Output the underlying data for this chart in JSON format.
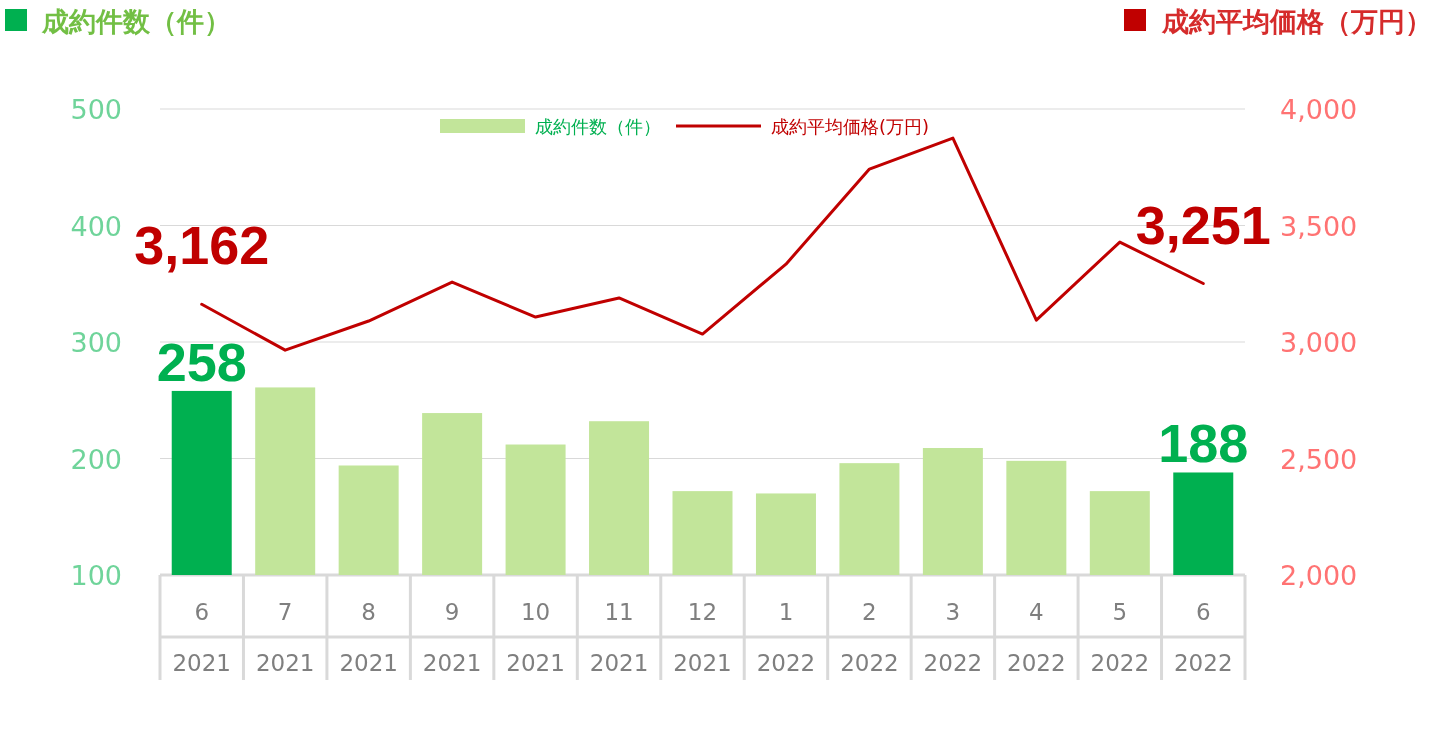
{
  "chart_data": {
    "type": "bar",
    "categories": [
      "6\n2021",
      "7\n2021",
      "8\n2021",
      "9\n2021",
      "10\n2021",
      "11\n2021",
      "12\n2021",
      "1\n2022",
      "2\n2022",
      "3\n2022",
      "4\n2022",
      "5\n2022",
      "6\n2022"
    ],
    "ylabel": "成約件数（件）",
    "y2label": "成約平均価格（万円）",
    "series": [
      {
        "name": "成約件数（件）",
        "color": "#00b050",
        "colors": [
          "#00b050",
          "#c2e59a",
          "#c2e59a",
          "#c2e59a",
          "#c2e59a",
          "#c2e59a",
          "#c2e59a",
          "#c2e59a",
          "#c2e59a",
          "#c2e59a",
          "#c2e59a",
          "#c2e59a",
          "#00b050"
        ],
        "values": [
          258,
          261,
          194,
          239,
          212,
          232,
          172,
          170,
          196,
          209,
          198,
          172,
          188
        ],
        "value_labels": [
          "258",
          null,
          null,
          null,
          null,
          null,
          null,
          null,
          null,
          null,
          null,
          null,
          "188"
        ]
      },
      {
        "name": "成約平均価格(万円)",
        "type": "line",
        "axis": "y2",
        "color": "#c00000",
        "values": [
          3162,
          2965,
          3090,
          3257,
          3107,
          3189,
          3034,
          3334,
          3742,
          3875,
          3094,
          3429,
          3251
        ],
        "value_labels": [
          "3,162",
          null,
          null,
          null,
          null,
          null,
          null,
          null,
          null,
          null,
          null,
          null,
          "3,251"
        ]
      }
    ],
    "ylim": [
      100,
      500
    ],
    "yticks": [
      100,
      200,
      300,
      400,
      500
    ],
    "y2lim": [
      2000,
      4000
    ],
    "y2ticks": [
      {
        "value": 2000,
        "label": "2,000"
      },
      {
        "value": 2500,
        "label": "2,500"
      },
      {
        "value": 3000,
        "label": "3,000"
      },
      {
        "value": 3500,
        "label": "3,500"
      },
      {
        "value": 4000,
        "label": "4,000"
      }
    ],
    "grid": "y",
    "legend": "top"
  }
}
